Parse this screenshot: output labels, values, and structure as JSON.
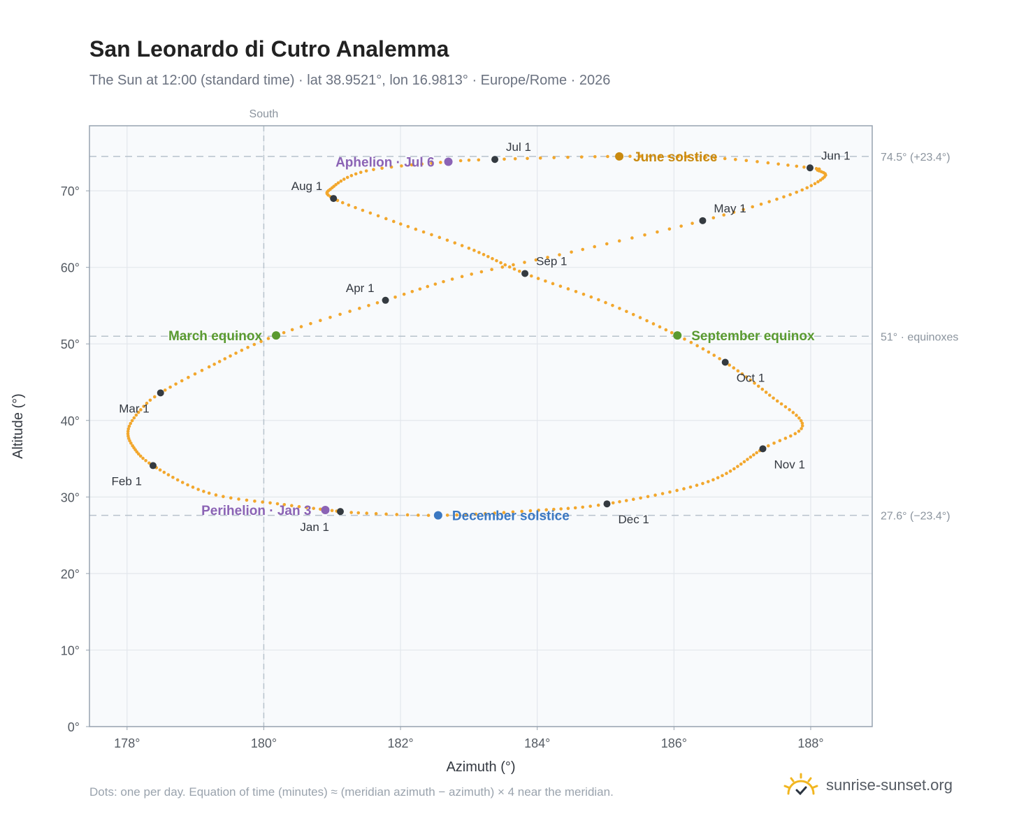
{
  "title": "San Leonardo di Cutro Analemma",
  "subtitle": "The Sun at 12:00 (standard time) · lat 38.9521°, lon 16.9813° · Europe/Rome · 2026",
  "footnote": "Dots: one per day. Equation of time (minutes) ≈ (meridian azimuth − azimuth) × 4 near the meridian.",
  "brand": {
    "name": "sunrise-sunset.org",
    "icon": "sun-logo-icon"
  },
  "colors": {
    "path": "#f2a72d",
    "month_dot": "#343a40",
    "june_solstice": "#c98a10",
    "december_solstice": "#3b78c2",
    "equinox": "#5a9a30",
    "aphelion_perihelion": "#8b63b5",
    "plot_bg": "#f8fafc",
    "grid": "#e3e7ec",
    "ref_line": "#b7c2cc"
  },
  "chart_data": {
    "type": "scatter",
    "title": "San Leonardo di Cutro Analemma",
    "xlabel": "Azimuth (°)",
    "ylabel": "Altitude (°)",
    "xlim": [
      177.45,
      188.9
    ],
    "ylim": [
      0,
      78.5
    ],
    "xticks": [
      178,
      180,
      182,
      184,
      186,
      188
    ],
    "xtick_labels": [
      "178°",
      "180°",
      "182°",
      "184°",
      "186°",
      "188°"
    ],
    "yticks": [
      0,
      10,
      20,
      30,
      40,
      50,
      60,
      70
    ],
    "ytick_labels": [
      "0°",
      "10°",
      "20°",
      "30°",
      "40°",
      "50°",
      "60°",
      "70°"
    ],
    "grid": true,
    "meridian": {
      "azimuth": 180,
      "label": "South"
    },
    "reference_lines": [
      {
        "altitude": 74.5,
        "label": "74.5° (+23.4°)"
      },
      {
        "altitude": 51.0,
        "label": "51° · equinoxes"
      },
      {
        "altitude": 27.6,
        "label": "27.6° (−23.4°)"
      }
    ],
    "daily_path": [
      {
        "doy": 1,
        "az": 181.12,
        "alt": 28.1
      },
      {
        "doy": 10,
        "az": 180.3,
        "alt": 29.0
      },
      {
        "doy": 20,
        "az": 179.2,
        "alt": 30.5
      },
      {
        "doy": 32,
        "az": 178.38,
        "alt": 34.1
      },
      {
        "doy": 41,
        "az": 178.08,
        "alt": 36.7
      },
      {
        "doy": 48,
        "az": 178.02,
        "alt": 38.9
      },
      {
        "doy": 55,
        "az": 178.2,
        "alt": 41.4
      },
      {
        "doy": 60,
        "az": 178.49,
        "alt": 43.6
      },
      {
        "doy": 68,
        "az": 179.2,
        "alt": 47.0
      },
      {
        "doy": 79,
        "az": 180.18,
        "alt": 51.1
      },
      {
        "doy": 91,
        "az": 181.78,
        "alt": 55.7
      },
      {
        "doy": 100,
        "az": 182.9,
        "alt": 58.8
      },
      {
        "doy": 110,
        "az": 184.5,
        "alt": 62.0
      },
      {
        "doy": 121,
        "az": 186.42,
        "alt": 66.1
      },
      {
        "doy": 131,
        "az": 187.7,
        "alt": 69.5
      },
      {
        "doy": 140,
        "az": 188.2,
        "alt": 71.8
      },
      {
        "doy": 146,
        "az": 188.1,
        "alt": 72.7
      },
      {
        "doy": 152,
        "az": 187.99,
        "alt": 73.0
      },
      {
        "doy": 162,
        "az": 186.6,
        "alt": 74.3
      },
      {
        "doy": 172,
        "az": 185.2,
        "alt": 74.5
      },
      {
        "doy": 182,
        "az": 183.38,
        "alt": 74.1
      },
      {
        "doy": 186,
        "az": 182.7,
        "alt": 73.8
      },
      {
        "doy": 195,
        "az": 181.5,
        "alt": 72.6
      },
      {
        "doy": 205,
        "az": 181.0,
        "alt": 70.4
      },
      {
        "doy": 213,
        "az": 181.02,
        "alt": 69.0
      },
      {
        "doy": 222,
        "az": 181.9,
        "alt": 66.0
      },
      {
        "doy": 232,
        "az": 183.0,
        "alt": 62.5
      },
      {
        "doy": 244,
        "az": 183.82,
        "alt": 59.2
      },
      {
        "doy": 255,
        "az": 185.0,
        "alt": 55.4
      },
      {
        "doy": 266,
        "az": 186.05,
        "alt": 51.1
      },
      {
        "doy": 274,
        "az": 186.75,
        "alt": 47.6
      },
      {
        "doy": 285,
        "az": 187.4,
        "alt": 43.3
      },
      {
        "doy": 296,
        "az": 187.88,
        "alt": 39.3
      },
      {
        "doy": 305,
        "az": 187.3,
        "alt": 36.3
      },
      {
        "doy": 320,
        "az": 186.5,
        "alt": 32.0
      },
      {
        "doy": 335,
        "az": 185.02,
        "alt": 29.1
      },
      {
        "doy": 345,
        "az": 183.9,
        "alt": 28.2
      },
      {
        "doy": 355,
        "az": 182.55,
        "alt": 27.6
      },
      {
        "doy": 365,
        "az": 181.2,
        "alt": 28.0
      }
    ],
    "month_markers": [
      {
        "label": "Jan 1",
        "az": 181.12,
        "alt": 28.1,
        "label_pos": "below-left"
      },
      {
        "label": "Feb 1",
        "az": 178.38,
        "alt": 34.1,
        "label_pos": "below-left"
      },
      {
        "label": "Mar 1",
        "az": 178.49,
        "alt": 43.6,
        "label_pos": "below-left"
      },
      {
        "label": "Apr 1",
        "az": 181.78,
        "alt": 55.7,
        "label_pos": "above-left"
      },
      {
        "label": "May 1",
        "az": 186.42,
        "alt": 66.1,
        "label_pos": "above-right"
      },
      {
        "label": "Jun 1",
        "az": 187.99,
        "alt": 73.0,
        "label_pos": "above-right"
      },
      {
        "label": "Jul 1",
        "az": 183.38,
        "alt": 74.1,
        "label_pos": "above-right"
      },
      {
        "label": "Aug 1",
        "az": 181.02,
        "alt": 69.0,
        "label_pos": "above-left"
      },
      {
        "label": "Sep 1",
        "az": 183.82,
        "alt": 59.2,
        "label_pos": "above-right"
      },
      {
        "label": "Oct 1",
        "az": 186.75,
        "alt": 47.6,
        "label_pos": "below-right"
      },
      {
        "label": "Nov 1",
        "az": 187.3,
        "alt": 36.3,
        "label_pos": "below-right"
      },
      {
        "label": "Dec 1",
        "az": 185.02,
        "alt": 29.1,
        "label_pos": "below-right"
      }
    ],
    "events": [
      {
        "label": "June solstice",
        "az": 185.2,
        "alt": 74.5,
        "color_key": "june_solstice",
        "label_side": "right"
      },
      {
        "label": "December solstice",
        "az": 182.55,
        "alt": 27.6,
        "color_key": "december_solstice",
        "label_side": "right"
      },
      {
        "label": "March equinox",
        "az": 180.18,
        "alt": 51.1,
        "color_key": "equinox",
        "label_side": "left"
      },
      {
        "label": "September equinox",
        "az": 186.05,
        "alt": 51.1,
        "color_key": "equinox",
        "label_side": "right"
      },
      {
        "label": "Aphelion · Jul 6",
        "az": 182.7,
        "alt": 73.8,
        "color_key": "aphelion_perihelion",
        "label_side": "left"
      },
      {
        "label": "Perihelion · Jan 3",
        "az": 180.9,
        "alt": 28.3,
        "color_key": "aphelion_perihelion",
        "label_side": "left"
      }
    ]
  }
}
